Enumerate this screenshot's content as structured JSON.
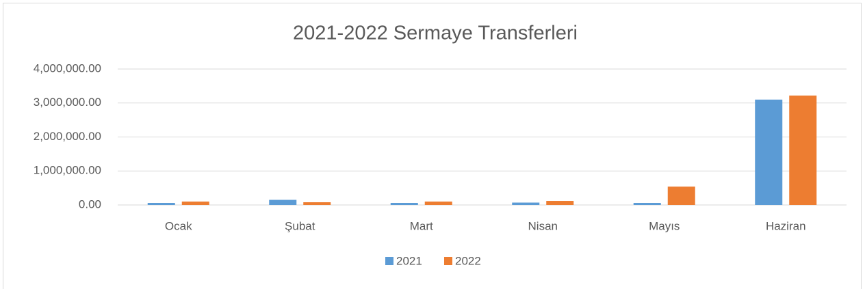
{
  "chart_data": {
    "type": "bar",
    "title": "2021-2022 Sermaye Transferleri",
    "categories": [
      "Ocak",
      "Şubat",
      "Mart",
      "Nisan",
      "Mayıs",
      "Haziran"
    ],
    "series": [
      {
        "name": "2021",
        "color": "#5b9bd5",
        "values": [
          60000,
          150000,
          60000,
          70000,
          60000,
          3100000
        ]
      },
      {
        "name": "2022",
        "color": "#ed7d31",
        "values": [
          100000,
          80000,
          100000,
          120000,
          540000,
          3220000
        ]
      }
    ],
    "ylim": [
      0,
      4000000
    ],
    "yticks": [
      {
        "value": 0,
        "label": "0.00"
      },
      {
        "value": 1000000,
        "label": "1,000,000.00"
      },
      {
        "value": 2000000,
        "label": "2,000,000.00"
      },
      {
        "value": 3000000,
        "label": "3,000,000.00"
      },
      {
        "value": 4000000,
        "label": "4,000,000.00"
      }
    ],
    "grid": true,
    "legend": "bottom"
  }
}
